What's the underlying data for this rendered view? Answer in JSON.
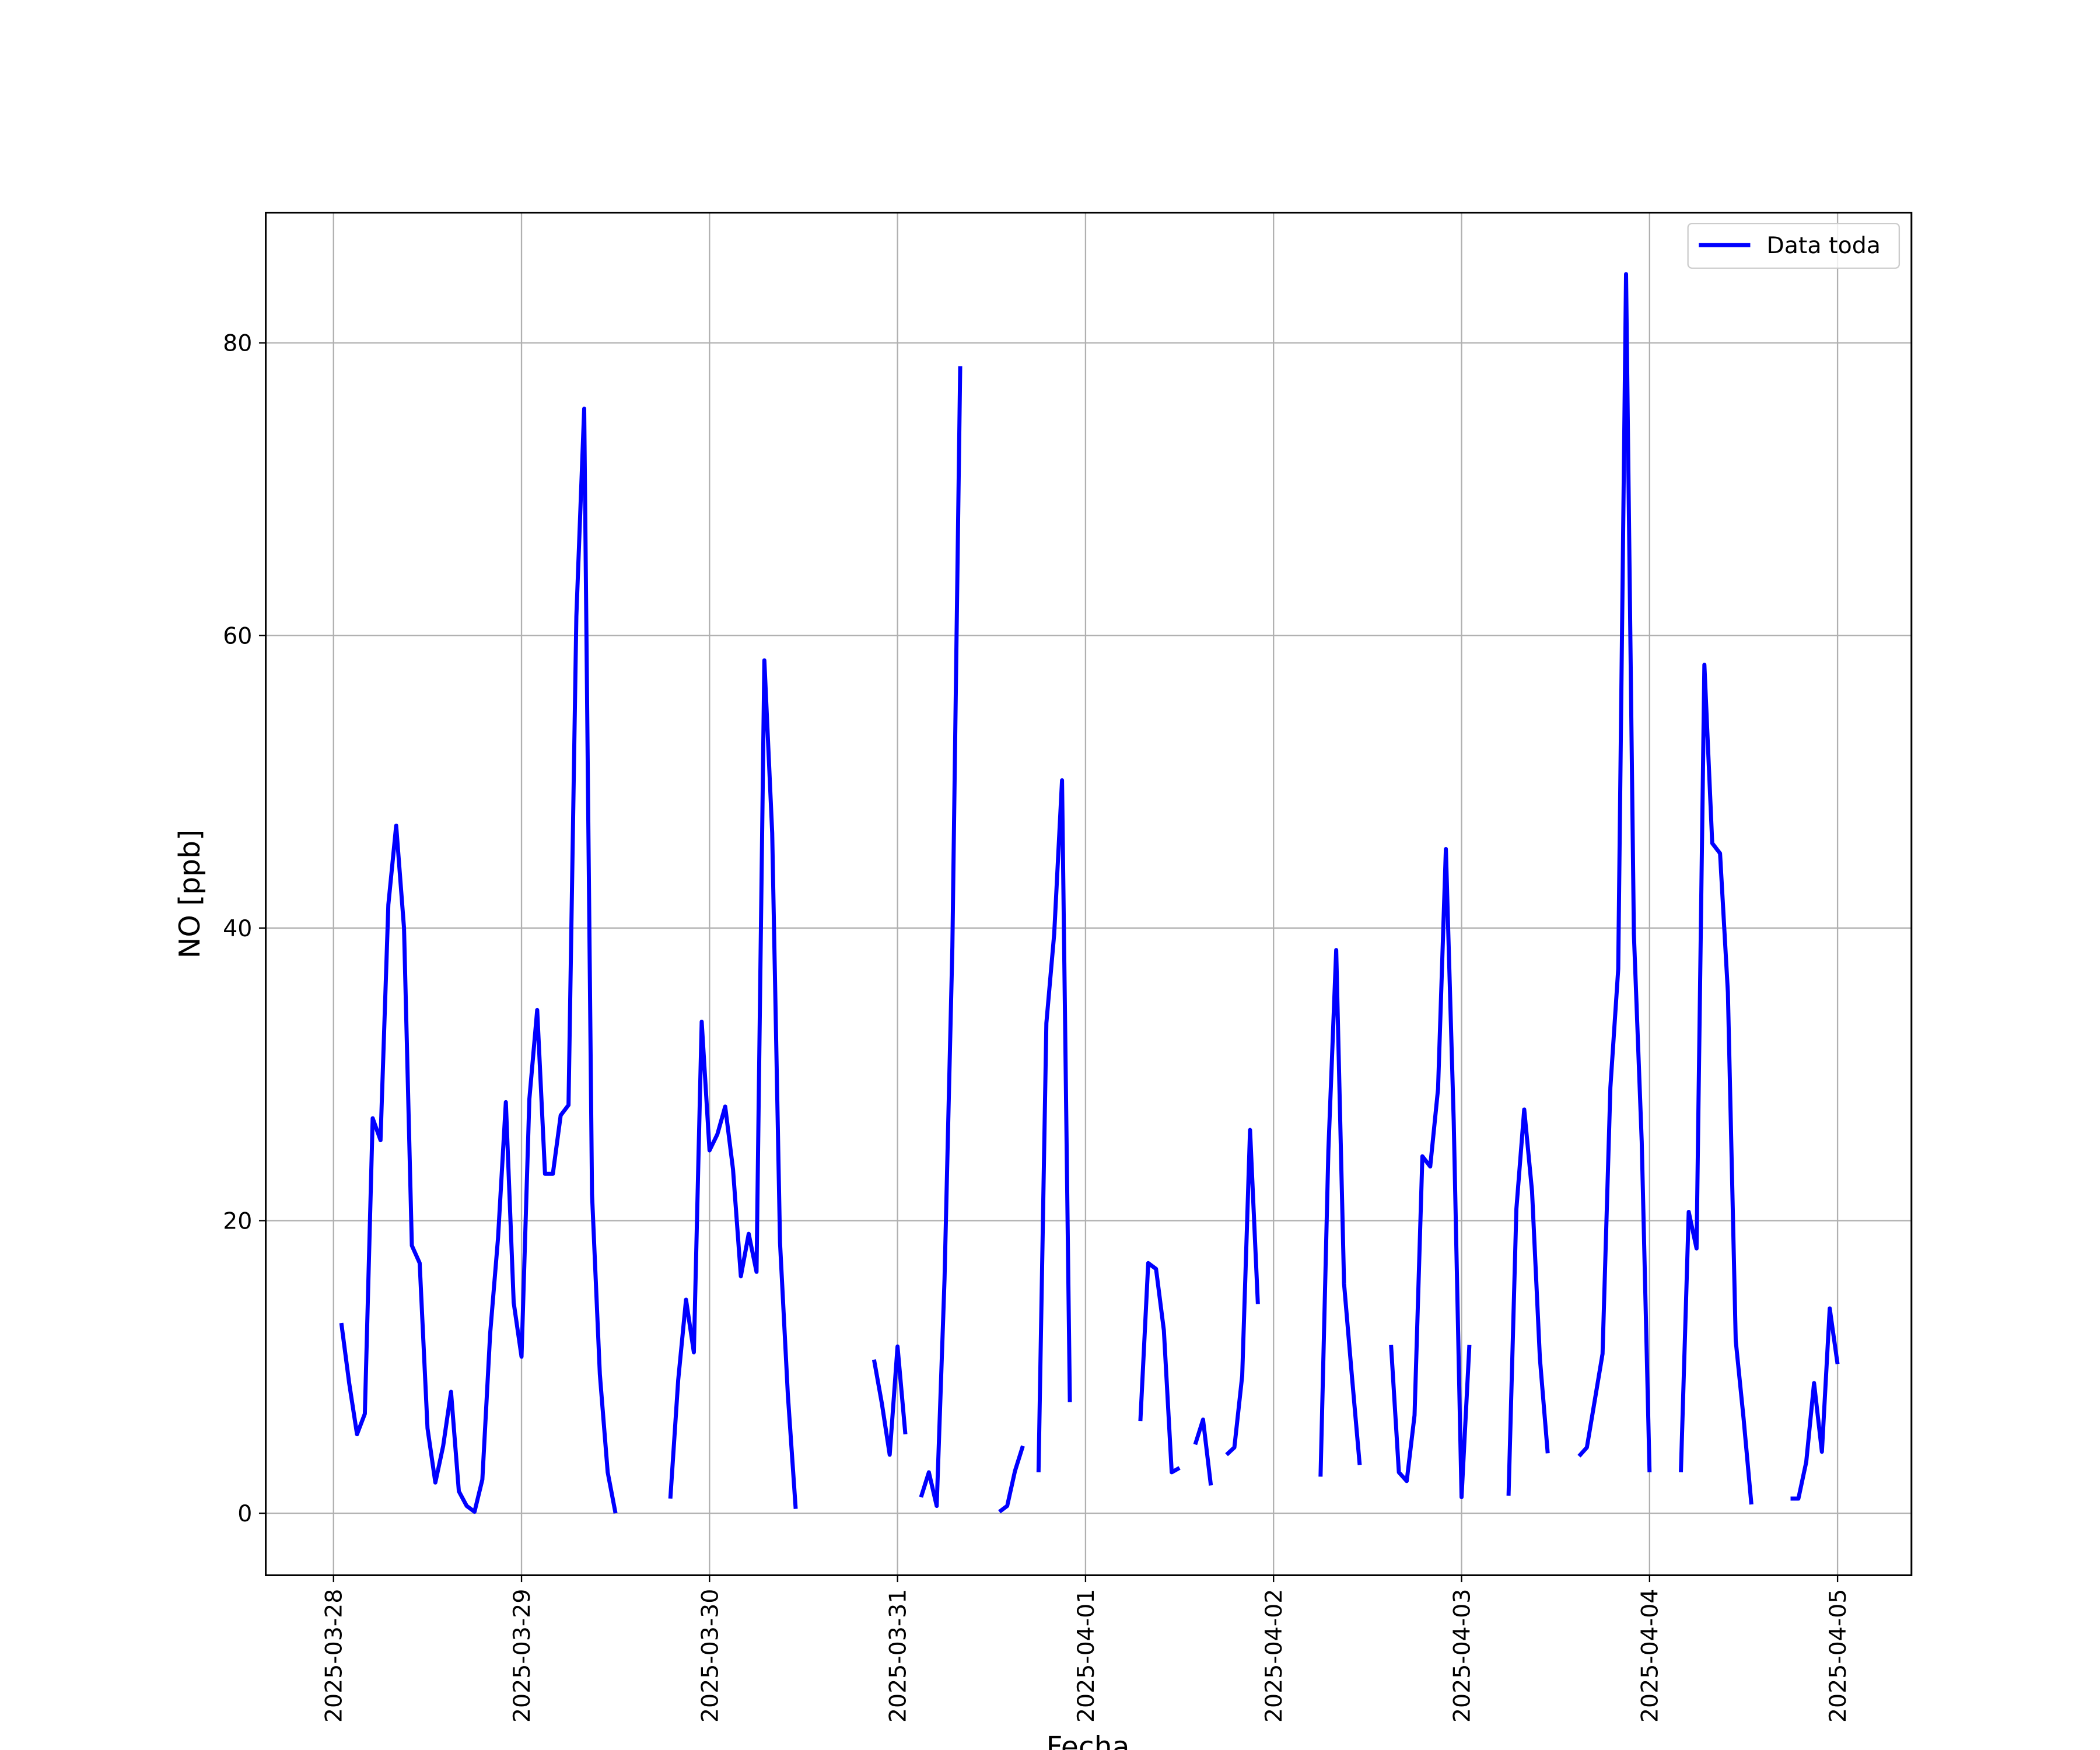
{
  "chart_data": {
    "type": "line",
    "xlabel": "Fecha",
    "ylabel": "NO [ppb]",
    "xlim": [
      "2025-03-27 15:21",
      "2025-04-05 09:26"
    ],
    "ylim": [
      -4.24,
      88.9
    ],
    "xticks": [
      "2025-03-28",
      "2025-03-29",
      "2025-03-30",
      "2025-03-31",
      "2025-04-01",
      "2025-04-02",
      "2025-04-03",
      "2025-04-04",
      "2025-04-05"
    ],
    "yticks": [
      0,
      20,
      40,
      60,
      80
    ],
    "grid": true,
    "legend": "upper right",
    "x": [
      "2025-03-28 01:00",
      "2025-03-28 02:00",
      "2025-03-28 03:00",
      "2025-03-28 04:00",
      "2025-03-28 05:00",
      "2025-03-28 06:00",
      "2025-03-28 07:00",
      "2025-03-28 08:00",
      "2025-03-28 09:00",
      "2025-03-28 10:00",
      "2025-03-28 11:00",
      "2025-03-28 12:00",
      "2025-03-28 13:00",
      "2025-03-28 14:00",
      "2025-03-28 15:00",
      "2025-03-28 16:00",
      "2025-03-28 17:00",
      "2025-03-28 18:00",
      "2025-03-28 19:00",
      "2025-03-28 20:00",
      "2025-03-28 21:00",
      "2025-03-28 22:00",
      "2025-03-28 23:00",
      "2025-03-29 00:00",
      "2025-03-29 01:00",
      "2025-03-29 02:00",
      "2025-03-29 03:00",
      "2025-03-29 04:00",
      "2025-03-29 05:00",
      "2025-03-29 06:00",
      "2025-03-29 07:00",
      "2025-03-29 08:00",
      "2025-03-29 09:00",
      "2025-03-29 10:00",
      "2025-03-29 11:00",
      "2025-03-29 12:00",
      "2025-03-29 13:00",
      "2025-03-29 14:00",
      "2025-03-29 15:00",
      "2025-03-29 16:00",
      "2025-03-29 17:00",
      "2025-03-29 18:00",
      "2025-03-29 19:00",
      "2025-03-29 20:00",
      "2025-03-29 21:00",
      "2025-03-29 22:00",
      "2025-03-29 23:00",
      "2025-03-30 00:00",
      "2025-03-30 01:00",
      "2025-03-30 02:00",
      "2025-03-30 03:00",
      "2025-03-30 04:00",
      "2025-03-30 05:00",
      "2025-03-30 06:00",
      "2025-03-30 07:00",
      "2025-03-30 08:00",
      "2025-03-30 09:00",
      "2025-03-30 10:00",
      "2025-03-30 11:00",
      "2025-03-30 12:00",
      "2025-03-30 13:00",
      "2025-03-30 14:00",
      "2025-03-30 15:00",
      "2025-03-30 16:00",
      "2025-03-30 17:00",
      "2025-03-30 18:00",
      "2025-03-30 19:00",
      "2025-03-30 20:00",
      "2025-03-30 21:00",
      "2025-03-30 22:00",
      "2025-03-30 23:00",
      "2025-03-31 00:00",
      "2025-03-31 01:00",
      "2025-03-31 02:00",
      "2025-03-31 03:00",
      "2025-03-31 04:00",
      "2025-03-31 05:00",
      "2025-03-31 06:00",
      "2025-03-31 07:00",
      "2025-03-31 08:00",
      "2025-03-31 09:00",
      "2025-03-31 10:00",
      "2025-03-31 11:00",
      "2025-03-31 12:00",
      "2025-03-31 13:00",
      "2025-03-31 14:00",
      "2025-03-31 15:00",
      "2025-03-31 16:00",
      "2025-03-31 17:00",
      "2025-03-31 18:00",
      "2025-03-31 19:00",
      "2025-03-31 20:00",
      "2025-03-31 21:00",
      "2025-03-31 22:00",
      "2025-03-31 23:00",
      "2025-04-01 00:00",
      "2025-04-01 01:00",
      "2025-04-01 02:00",
      "2025-04-01 03:00",
      "2025-04-01 04:00",
      "2025-04-01 05:00",
      "2025-04-01 06:00",
      "2025-04-01 07:00",
      "2025-04-01 08:00",
      "2025-04-01 09:00",
      "2025-04-01 10:00",
      "2025-04-01 11:00",
      "2025-04-01 12:00",
      "2025-04-01 13:00",
      "2025-04-01 14:00",
      "2025-04-01 15:00",
      "2025-04-01 16:00",
      "2025-04-01 17:00",
      "2025-04-01 18:00",
      "2025-04-01 19:00",
      "2025-04-01 20:00",
      "2025-04-01 21:00",
      "2025-04-01 22:00",
      "2025-04-01 23:00",
      "2025-04-02 00:00",
      "2025-04-02 01:00",
      "2025-04-02 02:00",
      "2025-04-02 03:00",
      "2025-04-02 04:00",
      "2025-04-02 05:00",
      "2025-04-02 06:00",
      "2025-04-02 07:00",
      "2025-04-02 08:00",
      "2025-04-02 09:00",
      "2025-04-02 10:00",
      "2025-04-02 11:00",
      "2025-04-02 12:00",
      "2025-04-02 13:00",
      "2025-04-02 14:00",
      "2025-04-02 15:00",
      "2025-04-02 16:00",
      "2025-04-02 17:00",
      "2025-04-02 18:00",
      "2025-04-02 19:00",
      "2025-04-02 20:00",
      "2025-04-02 21:00",
      "2025-04-02 22:00",
      "2025-04-02 23:00",
      "2025-04-03 00:00",
      "2025-04-03 01:00",
      "2025-04-03 02:00",
      "2025-04-03 03:00",
      "2025-04-03 04:00",
      "2025-04-03 05:00",
      "2025-04-03 06:00",
      "2025-04-03 07:00",
      "2025-04-03 08:00",
      "2025-04-03 09:00",
      "2025-04-03 10:00",
      "2025-04-03 11:00",
      "2025-04-03 12:00",
      "2025-04-03 13:00",
      "2025-04-03 14:00",
      "2025-04-03 15:00",
      "2025-04-03 16:00",
      "2025-04-03 17:00",
      "2025-04-03 18:00",
      "2025-04-03 19:00",
      "2025-04-03 20:00",
      "2025-04-03 21:00",
      "2025-04-03 22:00",
      "2025-04-03 23:00",
      "2025-04-04 00:00",
      "2025-04-04 01:00",
      "2025-04-04 02:00",
      "2025-04-04 03:00",
      "2025-04-04 04:00",
      "2025-04-04 05:00",
      "2025-04-04 06:00",
      "2025-04-04 07:00",
      "2025-04-04 08:00",
      "2025-04-04 09:00",
      "2025-04-04 10:00",
      "2025-04-04 11:00",
      "2025-04-04 12:00",
      "2025-04-04 13:00",
      "2025-04-04 14:00",
      "2025-04-04 15:00",
      "2025-04-04 16:00",
      "2025-04-04 17:00",
      "2025-04-04 18:00",
      "2025-04-04 19:00",
      "2025-04-04 20:00",
      "2025-04-04 21:00",
      "2025-04-04 22:00",
      "2025-04-04 23:00",
      "2025-04-05 00:00"
    ],
    "series": [
      {
        "name": "Data toda",
        "color": "#0000ff",
        "values": [
          13.0,
          8.9,
          5.4,
          6.8,
          27.0,
          25.5,
          41.6,
          47.0,
          40.0,
          18.3,
          17.1,
          5.8,
          2.1,
          4.6,
          8.3,
          1.5,
          0.5,
          0.1,
          2.3,
          12.3,
          18.8,
          28.1,
          14.4,
          10.7,
          28.3,
          34.4,
          23.2,
          23.2,
          27.2,
          27.9,
          61.3,
          75.5,
          21.8,
          9.5,
          2.8,
          0.0,
          null,
          null,
          null,
          null,
          null,
          null,
          1.0,
          9.1,
          14.6,
          11.0,
          33.6,
          24.8,
          25.9,
          27.8,
          23.5,
          16.2,
          19.1,
          16.5,
          58.3,
          46.5,
          18.5,
          8.1,
          0.3,
          null,
          null,
          null,
          null,
          null,
          null,
          null,
          null,
          null,
          10.5,
          7.5,
          4.0,
          11.4,
          5.4,
          null,
          1.1,
          2.8,
          0.5,
          16.0,
          38.7,
          78.4,
          null,
          null,
          null,
          null,
          0.1,
          0.5,
          2.9,
          4.6,
          null,
          2.8,
          33.5,
          39.6,
          50.1,
          7.6,
          null,
          null,
          null,
          null,
          null,
          null,
          null,
          null,
          6.3,
          17.1,
          16.7,
          12.5,
          2.8,
          3.1,
          null,
          4.7,
          6.4,
          1.9,
          null,
          4.0,
          4.5,
          9.4,
          26.2,
          14.3,
          null,
          null,
          null,
          null,
          null,
          null,
          null,
          2.5,
          24.8,
          38.5,
          15.7,
          9.4,
          3.3,
          null,
          null,
          null,
          11.5,
          2.8,
          2.2,
          6.7,
          24.4,
          23.7,
          29.0,
          45.4,
          26.8,
          1.1,
          11.5,
          null,
          null,
          null,
          null,
          1.2,
          20.8,
          27.6,
          22.0,
          10.6,
          4.1,
          null,
          null,
          null,
          3.9,
          4.5,
          7.7,
          10.9,
          29.1,
          37.2,
          84.7,
          39.6,
          25.4,
          2.8,
          null,
          null,
          null,
          2.8,
          20.6,
          18.1,
          58.0,
          45.8,
          45.1,
          35.6,
          11.8,
          6.5,
          0.6,
          null,
          null,
          null,
          null,
          1.0,
          1.0,
          3.5,
          8.9,
          4.2,
          14.0,
          10.2
        ]
      }
    ]
  }
}
